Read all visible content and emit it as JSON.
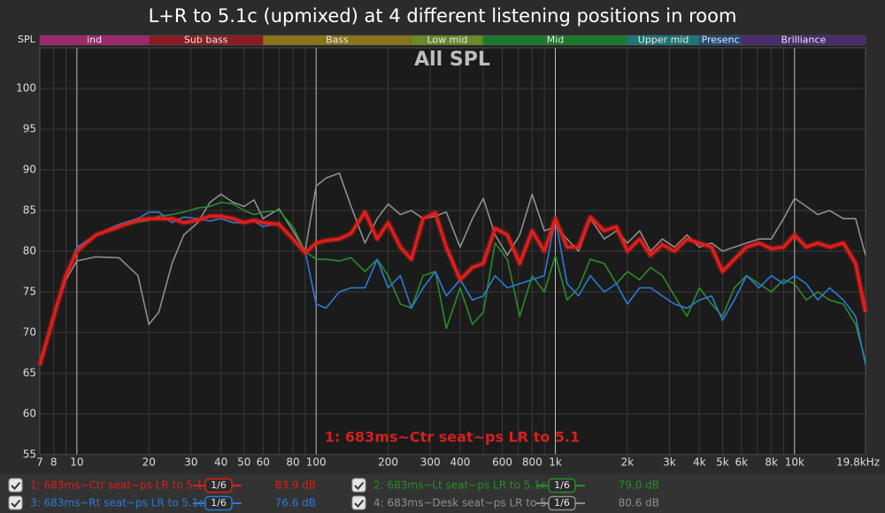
{
  "chart_data": {
    "type": "line",
    "title": "L+R to 5.1c (upmixed) at 4 different listening positions in room",
    "subtitle": "All SPL",
    "y_label": "SPL",
    "annotation": "1: 683ms~Ctr seat~ps LR to 5.1",
    "log_x": true,
    "grid": true,
    "xlim": [
      7,
      19800
    ],
    "ylim": [
      55,
      105
    ],
    "yticks": [
      55,
      60,
      65,
      70,
      75,
      80,
      85,
      90,
      95,
      100
    ],
    "xticks": [
      7,
      8,
      10,
      20,
      30,
      40,
      50,
      60,
      80,
      100,
      200,
      300,
      400,
      600,
      800,
      {
        "value": 1000,
        "label": "1k"
      },
      {
        "value": 2000,
        "label": "2k"
      },
      {
        "value": 3000,
        "label": "3k"
      },
      {
        "value": 4000,
        "label": "4k"
      },
      {
        "value": 5000,
        "label": "5k"
      },
      {
        "value": 6000,
        "label": "6k"
      },
      {
        "value": 8000,
        "label": "8k"
      },
      {
        "value": 10000,
        "label": "10k"
      },
      {
        "value": 19800,
        "label": "19.8kHz"
      }
    ],
    "x_minor_ticks": [
      9,
      70,
      90,
      500,
      700,
      900,
      7000,
      9000
    ],
    "bands": [
      {
        "label": "ind",
        "from": 7,
        "to": 20,
        "color": "#9c2a6c"
      },
      {
        "label": "Sub bass",
        "from": 20,
        "to": 60,
        "color": "#8a1c24"
      },
      {
        "label": "Bass",
        "from": 60,
        "to": 250,
        "color": "#8a741a"
      },
      {
        "label": "Low mid",
        "from": 250,
        "to": 500,
        "color": "#6a8a2a"
      },
      {
        "label": "Mid",
        "from": 500,
        "to": 2000,
        "color": "#1c7a2c"
      },
      {
        "label": "Upper mid",
        "from": 2000,
        "to": 4000,
        "color": "#1e7676"
      },
      {
        "label": "Presenc",
        "from": 4000,
        "to": 6000,
        "color": "#244a7a"
      },
      {
        "label": "Brilliance",
        "from": 6000,
        "to": 19800,
        "color": "#4a2c6c"
      }
    ],
    "x": [
      7,
      8,
      9,
      10,
      12,
      15,
      18,
      20,
      22,
      25,
      28,
      32,
      36,
      40,
      45,
      50,
      55,
      60,
      70,
      80,
      90,
      100,
      110,
      125,
      140,
      160,
      180,
      200,
      225,
      250,
      280,
      315,
      350,
      400,
      450,
      500,
      560,
      630,
      710,
      800,
      900,
      1000,
      1120,
      1250,
      1400,
      1600,
      1800,
      2000,
      2250,
      2500,
      2800,
      3150,
      3550,
      4000,
      4500,
      5000,
      5600,
      6300,
      7100,
      8000,
      9000,
      10000,
      11200,
      12500,
      14000,
      16000,
      18000,
      19800
    ],
    "series": [
      {
        "name": "1: 683ms~Ctr seat~ps LR to 5.1",
        "color": "#e01e1a",
        "smoothing": "1/6",
        "level": {
          "value": 83.9,
          "label": "83.9 dB"
        },
        "values": [
          66,
          72,
          77,
          80,
          82,
          83,
          83.8,
          84,
          84,
          84,
          83.5,
          83.8,
          84.3,
          84.3,
          84,
          83.5,
          83.8,
          83.5,
          83.3,
          81.5,
          79.8,
          81,
          81.3,
          81.5,
          82.2,
          84.8,
          81.5,
          83.5,
          80.5,
          79,
          84,
          84.7,
          80.5,
          76.5,
          78,
          78.5,
          82.8,
          82,
          78.5,
          82.5,
          80,
          84,
          80.5,
          80.5,
          84.2,
          82.5,
          83,
          80,
          81.5,
          79.5,
          80.8,
          80,
          81.5,
          81,
          80.5,
          77.5,
          79,
          80.5,
          81,
          80.3,
          80.5,
          82,
          80.5,
          81,
          80.5,
          81,
          78.5,
          72.5
        ]
      },
      {
        "name": "3: 683ms~Rt seat~ps LR to 5.1c",
        "color": "#2a7ad8",
        "smoothing": "1/6",
        "level": {
          "value": 76.6,
          "label": "76.6 dB"
        },
        "values": [
          66,
          72,
          77,
          80.5,
          82,
          83.3,
          84,
          84.8,
          84.8,
          83.5,
          84.2,
          84,
          83.7,
          84,
          83.5,
          83.5,
          83.7,
          83,
          83.5,
          81.5,
          80,
          73.5,
          73,
          75,
          75.5,
          75.5,
          79,
          75.5,
          77,
          73,
          75.5,
          77.5,
          74.5,
          76.5,
          74,
          74.5,
          77,
          75.5,
          76,
          76.5,
          77,
          84,
          76,
          74.5,
          77,
          75,
          76,
          73.5,
          75.5,
          75.5,
          74.5,
          73.5,
          73,
          74,
          74.5,
          71.5,
          74,
          77,
          75.5,
          77,
          76,
          77,
          76,
          74,
          75.5,
          74,
          72,
          66
        ]
      },
      {
        "name": "2: 683ms~Lt seat~ps LR to 5.1c",
        "color": "#2a8c2a",
        "smoothing": "1/6",
        "level": {
          "value": 79.0,
          "label": "79.0 dB"
        },
        "values": [
          66,
          72,
          77,
          80.3,
          82,
          83,
          83.6,
          83.8,
          84.3,
          84.5,
          84.8,
          85.3,
          85.5,
          86,
          85.8,
          85,
          84.5,
          84.8,
          85,
          83,
          80,
          79,
          79,
          78.8,
          79.2,
          77.5,
          79,
          77,
          73.5,
          73,
          77,
          77.5,
          70.5,
          75.5,
          71,
          72.5,
          81,
          79,
          72,
          77,
          75,
          79.5,
          74,
          75.5,
          79,
          78.5,
          76,
          77.5,
          76.5,
          78,
          77,
          74.5,
          72,
          75.5,
          73.5,
          72,
          75.5,
          77,
          76,
          75,
          76.5,
          76,
          74,
          75,
          74,
          73.5,
          71,
          66.5
        ]
      },
      {
        "name": "4: 683ms~Desk seat~ps LR to 5.",
        "color": "#8e8e8e",
        "smoothing": "1/6",
        "level": {
          "value": 80.6,
          "label": "80.6 dB"
        },
        "values": [
          66,
          72,
          76.5,
          78.8,
          79.3,
          79.2,
          77,
          71,
          72.5,
          78.5,
          82,
          83.5,
          86,
          87,
          86,
          85.5,
          86.3,
          84,
          85.2,
          82.5,
          80,
          88,
          89,
          89.6,
          85.5,
          81,
          84,
          85.8,
          84.5,
          85,
          84,
          84.3,
          84.8,
          80.5,
          84,
          86.5,
          82,
          79.5,
          82,
          87,
          82.5,
          83,
          81.5,
          80,
          84,
          81.5,
          82.5,
          81,
          82.5,
          80,
          81.5,
          80.5,
          82,
          80.5,
          81,
          80,
          80.5,
          81,
          81.5,
          81.5,
          84,
          86.5,
          85.5,
          84.5,
          85,
          84,
          84,
          79.5
        ]
      }
    ]
  }
}
